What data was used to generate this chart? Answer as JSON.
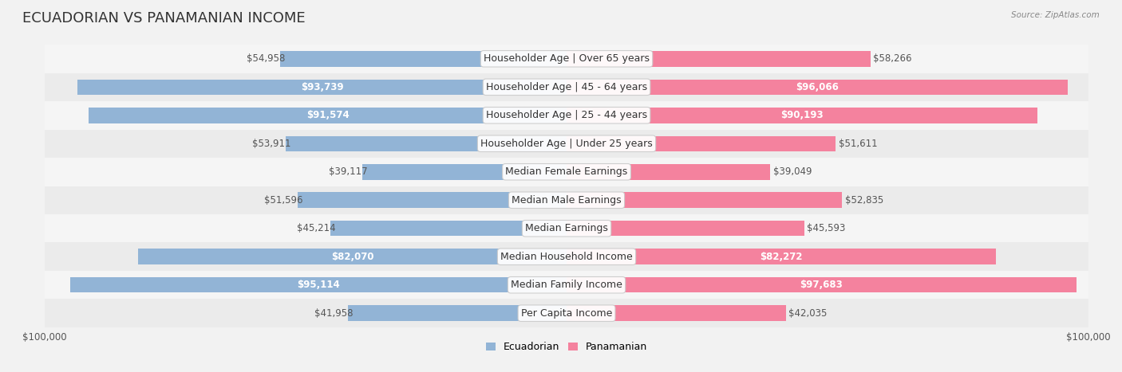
{
  "title": "ECUADORIAN VS PANAMANIAN INCOME",
  "source": "Source: ZipAtlas.com",
  "categories": [
    "Per Capita Income",
    "Median Family Income",
    "Median Household Income",
    "Median Earnings",
    "Median Male Earnings",
    "Median Female Earnings",
    "Householder Age | Under 25 years",
    "Householder Age | 25 - 44 years",
    "Householder Age | 45 - 64 years",
    "Householder Age | Over 65 years"
  ],
  "ecuadorian": [
    41958,
    95114,
    82070,
    45214,
    51596,
    39117,
    53911,
    91574,
    93739,
    54958
  ],
  "panamanian": [
    42035,
    97683,
    82272,
    45593,
    52835,
    39049,
    51611,
    90193,
    96066,
    58266
  ],
  "max_value": 100000,
  "blue_color": "#92B4D6",
  "pink_color": "#F4829E",
  "blue_label_color": "#5A8FBF",
  "pink_label_color": "#E8547A",
  "bg_color": "#F0F0F0",
  "row_bg_even": "#F8F8F8",
  "row_bg_odd": "#EFEFEF",
  "bar_height": 0.55,
  "label_fontsize": 9,
  "title_fontsize": 13,
  "category_fontsize": 9,
  "value_fontsize": 8.5
}
